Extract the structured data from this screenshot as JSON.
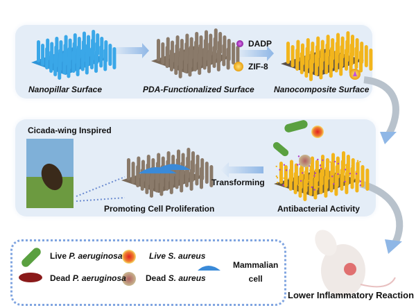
{
  "top_row": {
    "nanopillar": "Nanopillar Surface",
    "pda": "PDA-Functionalized Surface",
    "nanocomposite": "Nanocomposite Surface",
    "reagents": [
      "DADP",
      "ZIF-8"
    ]
  },
  "middle_row": {
    "cicada": "Cicada-wing Inspired",
    "transforming": "Transforming",
    "proliferation": "Promoting Cell Proliferation",
    "antibacterial": "Antibacterial Activity"
  },
  "outcome": "Lower Inflammatory Reaction",
  "legend": {
    "live_pa": {
      "prefix": "Live ",
      "name": "P. aeruginosa"
    },
    "dead_pa": {
      "prefix": "Dead ",
      "name": "P. aeruginosa"
    },
    "live_sa": {
      "prefix": "Live ",
      "name": "S. aureus"
    },
    "dead_sa": {
      "prefix": "Dead ",
      "name": "S. aureus"
    },
    "mammalian": [
      "Mammalian",
      "cell"
    ]
  },
  "colors": {
    "panel": "#e4edf7",
    "nanopillar": "#3aa7e8",
    "pda": "#8a7a6a",
    "zif8": "#f2b51c",
    "dadp": "#b03cc8",
    "arrow": "#a9c7e8"
  }
}
